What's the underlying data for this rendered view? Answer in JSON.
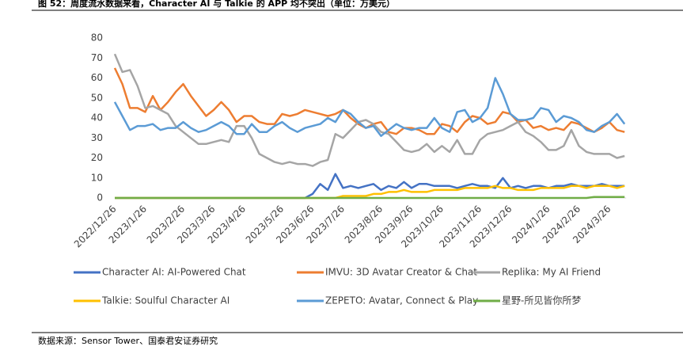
{
  "chart_data": {
    "type": "line",
    "title": "图 52：周度流水数据来看，Character AI 与 Talkie 的 APP 均不突出（单位：万美元）",
    "source": "数据来源：Sensor Tower、国泰君安证券研究",
    "categories": [
      "2022/12/26",
      null,
      null,
      null,
      "2023/1/26",
      null,
      null,
      null,
      null,
      "2023/2/26",
      null,
      null,
      null,
      "2023/3/26",
      null,
      null,
      null,
      "2023/4/26",
      null,
      null,
      null,
      null,
      "2023/5/26",
      null,
      null,
      null,
      "2023/6/26",
      null,
      null,
      null,
      "2023/7/26",
      null,
      null,
      null,
      null,
      "2023/8/26",
      null,
      null,
      null,
      "2023/9/26",
      null,
      null,
      null,
      "2023/10/26",
      null,
      null,
      null,
      null,
      "2023/11/26",
      null,
      null,
      null,
      "2023/12/26",
      null,
      null,
      null,
      null,
      "2024/1/26",
      null,
      null,
      null,
      "2024/2/26",
      null,
      null,
      null,
      "2024/3/26",
      null,
      null
    ],
    "ylim": [
      0,
      80
    ],
    "yticks": [
      0,
      10,
      20,
      30,
      40,
      50,
      60,
      70,
      80
    ],
    "grid": false,
    "legend": "bottom",
    "series": [
      {
        "name": "Character AI: AI-Powered Chat",
        "color": "#4472c4",
        "values": [
          0,
          0,
          0,
          0,
          0,
          0,
          0,
          0,
          0,
          0,
          0,
          0,
          0,
          0,
          0,
          0,
          0,
          0,
          0,
          0,
          0,
          0,
          0,
          0,
          0,
          0,
          2,
          7,
          4,
          12,
          5,
          6,
          5,
          6,
          7,
          4,
          6,
          5,
          8,
          5,
          7,
          7,
          6,
          6,
          6,
          5,
          6,
          7,
          6,
          6,
          5,
          10,
          5,
          6,
          5,
          6,
          6,
          5,
          6,
          6,
          7,
          6,
          6,
          6,
          7,
          6,
          6,
          6
        ]
      },
      {
        "name": "IMVU: 3D Avatar Creator & Chat",
        "color": "#ed7d31",
        "values": [
          65,
          57,
          45,
          45,
          43,
          51,
          44,
          48,
          53,
          57,
          51,
          46,
          41,
          44,
          48,
          44,
          38,
          41,
          41,
          38,
          37,
          37,
          42,
          41,
          42,
          44,
          43,
          42,
          41,
          42,
          44,
          40,
          37,
          35,
          37,
          38,
          33,
          32,
          35,
          35,
          34,
          32,
          32,
          37,
          36,
          33,
          38,
          41,
          40,
          37,
          38,
          43,
          42,
          38,
          39,
          35,
          36,
          34,
          35,
          34,
          38,
          37,
          35,
          33,
          35,
          38,
          34,
          33
        ]
      },
      {
        "name": "Replika: My AI Friend",
        "color": "#a5a5a5",
        "values": [
          72,
          63,
          64,
          56,
          45,
          46,
          44,
          42,
          36,
          33,
          30,
          27,
          27,
          28,
          29,
          28,
          36,
          36,
          30,
          22,
          20,
          18,
          17,
          18,
          17,
          17,
          16,
          18,
          19,
          32,
          30,
          34,
          38,
          39,
          37,
          33,
          32,
          28,
          24,
          23,
          24,
          27,
          23,
          26,
          23,
          29,
          22,
          22,
          29,
          32,
          33,
          34,
          36,
          38,
          33,
          31,
          28,
          24,
          24,
          26,
          34,
          26,
          23,
          22,
          22,
          22,
          20,
          21
        ]
      },
      {
        "name": "Talkie: Soulful Character AI",
        "color": "#ffc000",
        "values": [
          0,
          0,
          0,
          0,
          0,
          0,
          0,
          0,
          0,
          0,
          0,
          0,
          0,
          0,
          0,
          0,
          0,
          0,
          0,
          0,
          0,
          0,
          0,
          0,
          0,
          0,
          0,
          0,
          0,
          0,
          1,
          1,
          1,
          1,
          2,
          2,
          3,
          3,
          4,
          3,
          3,
          3,
          4,
          4,
          4,
          4,
          5,
          5,
          5,
          5,
          6,
          5,
          5,
          4,
          4,
          4,
          5,
          5,
          5,
          5,
          6,
          6,
          5,
          6,
          6,
          6,
          5,
          6
        ]
      },
      {
        "name": "ZEPETO: Avatar, Connect & Play",
        "color": "#5b9bd5",
        "values": [
          48,
          41,
          34,
          36,
          36,
          37,
          34,
          35,
          35,
          38,
          35,
          33,
          34,
          36,
          38,
          36,
          32,
          32,
          37,
          33,
          33,
          36,
          38,
          35,
          33,
          35,
          36,
          37,
          40,
          38,
          44,
          42,
          38,
          35,
          36,
          31,
          34,
          37,
          35,
          34,
          35,
          35,
          40,
          35,
          33,
          43,
          44,
          38,
          40,
          45,
          60,
          52,
          42,
          39,
          39,
          40,
          45,
          44,
          38,
          41,
          40,
          38,
          34,
          33,
          36,
          38,
          42,
          37
        ]
      },
      {
        "name": "星野-所见皆你所梦",
        "color": "#70ad47",
        "values": [
          0,
          0,
          0,
          0,
          0,
          0,
          0,
          0,
          0,
          0,
          0,
          0,
          0,
          0,
          0,
          0,
          0,
          0,
          0,
          0,
          0,
          0,
          0,
          0,
          0,
          0,
          0,
          0,
          0,
          0,
          0,
          0,
          0,
          0,
          0,
          0,
          0,
          0,
          0,
          0,
          0,
          0,
          0,
          0,
          0,
          0,
          0,
          0,
          0,
          0,
          0,
          0,
          0,
          0,
          0,
          0,
          0,
          0,
          0,
          0,
          0,
          0,
          0,
          0.5,
          0.5,
          0.5,
          0.5,
          0.5
        ]
      }
    ]
  }
}
